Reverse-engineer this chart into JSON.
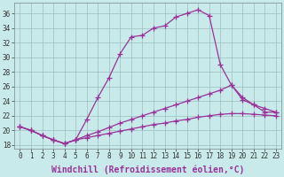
{
  "title": "",
  "xlabel": "Windchill (Refroidissement éolien,°C)",
  "ylabel": "",
  "bg_color": "#c8eaea",
  "line_color": "#993399",
  "grid_color": "#9bbfbf",
  "ylim": [
    17.5,
    37.5
  ],
  "xlim": [
    -0.5,
    23.5
  ],
  "yticks": [
    18,
    20,
    22,
    24,
    26,
    28,
    30,
    32,
    34,
    36
  ],
  "xticks": [
    0,
    1,
    2,
    3,
    4,
    5,
    6,
    7,
    8,
    9,
    10,
    11,
    12,
    13,
    14,
    15,
    16,
    17,
    18,
    19,
    20,
    21,
    22,
    23
  ],
  "line1": {
    "x": [
      0,
      1,
      2,
      3,
      4,
      5,
      6,
      7,
      8,
      9,
      10,
      11,
      12,
      13,
      14,
      15,
      16,
      17,
      18,
      19,
      20,
      21,
      22,
      23
    ],
    "y": [
      20.5,
      20.0,
      19.3,
      18.7,
      18.2,
      18.7,
      21.5,
      24.5,
      27.2,
      30.5,
      32.8,
      33.0,
      34.0,
      34.3,
      35.5,
      36.0,
      36.5,
      35.7,
      29.0,
      26.2,
      24.5,
      23.5,
      22.5,
      22.5
    ]
  },
  "line2": {
    "x": [
      0,
      1,
      2,
      3,
      4,
      5,
      6,
      7,
      8,
      9,
      10,
      11,
      12,
      13,
      14,
      15,
      16,
      17,
      18,
      19,
      20,
      21,
      22,
      23
    ],
    "y": [
      20.5,
      20.0,
      19.3,
      18.7,
      18.2,
      18.7,
      19.3,
      19.8,
      20.4,
      21.0,
      21.5,
      22.0,
      22.5,
      23.0,
      23.5,
      24.0,
      24.5,
      25.0,
      25.5,
      26.2,
      24.2,
      23.5,
      23.0,
      22.5
    ]
  },
  "line3": {
    "x": [
      0,
      1,
      2,
      3,
      4,
      5,
      6,
      7,
      8,
      9,
      10,
      11,
      12,
      13,
      14,
      15,
      16,
      17,
      18,
      19,
      20,
      21,
      22,
      23
    ],
    "y": [
      20.5,
      20.0,
      19.3,
      18.7,
      18.2,
      18.7,
      19.0,
      19.3,
      19.6,
      19.9,
      20.2,
      20.5,
      20.8,
      21.0,
      21.3,
      21.5,
      21.8,
      22.0,
      22.2,
      22.3,
      22.3,
      22.2,
      22.1,
      22.0
    ]
  },
  "marker": "+",
  "markersize": 4,
  "linewidth": 0.9,
  "xlabel_fontsize": 7,
  "tick_fontsize": 5.5
}
